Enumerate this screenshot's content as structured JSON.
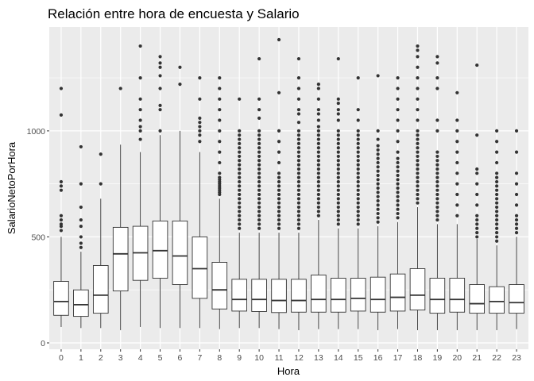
{
  "chart_data": {
    "type": "boxplot",
    "title": "Relación entre hora de encuesta y Salario",
    "xlabel": "Hora",
    "ylabel": "SalarioNetoPorHora",
    "categories": [
      "0",
      "1",
      "2",
      "3",
      "4",
      "5",
      "6",
      "7",
      "8",
      "9",
      "10",
      "11",
      "12",
      "13",
      "14",
      "15",
      "16",
      "17",
      "18",
      "19",
      "20",
      "21",
      "22",
      "23"
    ],
    "y_ticks": [
      0,
      500,
      1000
    ],
    "y_tick_labels": [
      "0",
      "500",
      "1000"
    ],
    "ylim": [
      -30,
      1490
    ],
    "grid": true,
    "background": "#ebebeb",
    "grid_color": "#ffffff",
    "box_fill": "#ffffff",
    "line_color": "#333333",
    "point_color": "#333333",
    "boxes": [
      {
        "hora": "0",
        "min": 75,
        "q1": 130,
        "median": 195,
        "q3": 290,
        "max": 500,
        "outliers": [
          530,
          550,
          560,
          580,
          600,
          720,
          740,
          760,
          1075,
          1200
        ]
      },
      {
        "hora": "1",
        "min": 70,
        "q1": 125,
        "median": 180,
        "q3": 250,
        "max": 430,
        "outliers": [
          450,
          470,
          500,
          550,
          580,
          640,
          750,
          925
        ]
      },
      {
        "hora": "2",
        "min": 70,
        "q1": 140,
        "median": 225,
        "q3": 365,
        "max": 680,
        "outliers": [
          750,
          890
        ]
      },
      {
        "hora": "3",
        "min": 60,
        "q1": 245,
        "median": 420,
        "q3": 545,
        "max": 935,
        "outliers": [
          1200
        ]
      },
      {
        "hora": "4",
        "min": 75,
        "q1": 295,
        "median": 425,
        "q3": 550,
        "max": 900,
        "outliers": [
          960,
          1000,
          1020,
          1050,
          1100,
          1150,
          1250,
          1400
        ]
      },
      {
        "hora": "5",
        "min": 70,
        "q1": 305,
        "median": 435,
        "q3": 575,
        "max": 980,
        "outliers": [
          1000,
          1100,
          1120,
          1200,
          1260,
          1300,
          1320,
          1350
        ]
      },
      {
        "hora": "6",
        "min": 70,
        "q1": 275,
        "median": 410,
        "q3": 575,
        "max": 1000,
        "outliers": [
          1220,
          1300
        ]
      },
      {
        "hora": "7",
        "min": 70,
        "q1": 210,
        "median": 350,
        "q3": 500,
        "max": 900,
        "outliers": [
          950,
          980,
          1000,
          1020,
          1040,
          1060,
          1150,
          1250
        ]
      },
      {
        "hora": "8",
        "min": 65,
        "q1": 160,
        "median": 250,
        "q3": 380,
        "max": 680,
        "outliers": [
          700,
          710,
          720,
          730,
          740,
          750,
          760,
          770,
          780,
          800,
          850,
          900,
          950,
          1000,
          1050,
          1100,
          1150,
          1200,
          1250
        ]
      },
      {
        "hora": "9",
        "min": 70,
        "q1": 150,
        "median": 205,
        "q3": 300,
        "max": 520,
        "outliers": [
          540,
          560,
          580,
          600,
          620,
          640,
          660,
          680,
          700,
          720,
          740,
          760,
          780,
          800,
          820,
          840,
          860,
          880,
          900,
          920,
          940,
          960,
          980,
          1000,
          1150
        ]
      },
      {
        "hora": "10",
        "min": 70,
        "q1": 148,
        "median": 205,
        "q3": 300,
        "max": 520,
        "outliers": [
          540,
          560,
          580,
          600,
          620,
          640,
          660,
          680,
          700,
          720,
          740,
          760,
          780,
          800,
          820,
          840,
          860,
          880,
          900,
          920,
          940,
          960,
          980,
          1000,
          1060,
          1100,
          1150,
          1340
        ]
      },
      {
        "hora": "11",
        "min": 65,
        "q1": 143,
        "median": 200,
        "q3": 300,
        "max": 520,
        "outliers": [
          540,
          560,
          580,
          600,
          620,
          640,
          660,
          680,
          700,
          720,
          740,
          760,
          780,
          800,
          850,
          900,
          950,
          1000,
          1180,
          1430
        ]
      },
      {
        "hora": "12",
        "min": 60,
        "q1": 145,
        "median": 200,
        "q3": 300,
        "max": 520,
        "outliers": [
          540,
          560,
          580,
          600,
          620,
          640,
          660,
          680,
          700,
          720,
          740,
          760,
          780,
          800,
          820,
          840,
          860,
          880,
          900,
          920,
          940,
          960,
          980,
          1000,
          1040,
          1080,
          1100,
          1150,
          1200,
          1250,
          1340
        ]
      },
      {
        "hora": "13",
        "min": 65,
        "q1": 145,
        "median": 205,
        "q3": 320,
        "max": 580,
        "outliers": [
          600,
          620,
          640,
          660,
          680,
          700,
          720,
          740,
          760,
          780,
          800,
          820,
          840,
          860,
          880,
          900,
          920,
          940,
          960,
          980,
          1000,
          1020,
          1050,
          1080,
          1100,
          1150,
          1200,
          1220
        ]
      },
      {
        "hora": "14",
        "min": 65,
        "q1": 145,
        "median": 205,
        "q3": 305,
        "max": 540,
        "outliers": [
          560,
          580,
          600,
          620,
          640,
          660,
          680,
          700,
          720,
          740,
          760,
          780,
          800,
          820,
          840,
          860,
          880,
          900,
          920,
          940,
          960,
          980,
          1000,
          1050,
          1080,
          1100,
          1130,
          1150,
          1340
        ]
      },
      {
        "hora": "15",
        "min": 65,
        "q1": 150,
        "median": 210,
        "q3": 305,
        "max": 540,
        "outliers": [
          560,
          580,
          600,
          620,
          640,
          660,
          680,
          700,
          720,
          740,
          760,
          780,
          800,
          820,
          840,
          860,
          880,
          900,
          920,
          940,
          960,
          980,
          1000,
          1050,
          1100,
          1250
        ]
      },
      {
        "hora": "16",
        "min": 60,
        "q1": 145,
        "median": 205,
        "q3": 310,
        "max": 550,
        "outliers": [
          570,
          590,
          610,
          630,
          650,
          670,
          690,
          710,
          730,
          750,
          770,
          790,
          810,
          830,
          850,
          870,
          890,
          910,
          930,
          960,
          1000,
          1260
        ]
      },
      {
        "hora": "17",
        "min": 65,
        "q1": 150,
        "median": 215,
        "q3": 325,
        "max": 570,
        "outliers": [
          590,
          610,
          630,
          650,
          670,
          690,
          710,
          730,
          750,
          770,
          790,
          810,
          830,
          850,
          870,
          900,
          950,
          1000,
          1050,
          1100,
          1150,
          1200,
          1250
        ]
      },
      {
        "hora": "18",
        "min": 60,
        "q1": 155,
        "median": 225,
        "q3": 350,
        "max": 640,
        "outliers": [
          660,
          680,
          700,
          720,
          740,
          760,
          780,
          800,
          820,
          840,
          860,
          880,
          900,
          920,
          940,
          960,
          980,
          1000,
          1050,
          1100,
          1150,
          1200,
          1250,
          1300,
          1350,
          1380,
          1400
        ]
      },
      {
        "hora": "19",
        "min": 60,
        "q1": 140,
        "median": 205,
        "q3": 305,
        "max": 560,
        "outliers": [
          580,
          600,
          620,
          640,
          660,
          680,
          700,
          720,
          740,
          760,
          780,
          800,
          820,
          840,
          860,
          880,
          900,
          1000,
          1050,
          1200,
          1250,
          1320,
          1350
        ]
      },
      {
        "hora": "20",
        "min": 60,
        "q1": 145,
        "median": 205,
        "q3": 305,
        "max": 560,
        "outliers": [
          600,
          650,
          700,
          750,
          800,
          850,
          900,
          950,
          1000,
          1050,
          1180
        ]
      },
      {
        "hora": "21",
        "min": 60,
        "q1": 140,
        "median": 185,
        "q3": 275,
        "max": 490,
        "outliers": [
          500,
          520,
          540,
          560,
          580,
          600,
          650,
          700,
          750,
          800,
          820,
          980,
          1310
        ]
      },
      {
        "hora": "22",
        "min": 60,
        "q1": 140,
        "median": 195,
        "q3": 265,
        "max": 460,
        "outliers": [
          480,
          500,
          520,
          540,
          560,
          580,
          600,
          620,
          640,
          660,
          680,
          700,
          720,
          740,
          760,
          780,
          800,
          850,
          900,
          950,
          1000
        ]
      },
      {
        "hora": "23",
        "min": 65,
        "q1": 140,
        "median": 190,
        "q3": 275,
        "max": 500,
        "outliers": [
          520,
          540,
          560,
          580,
          600,
          650,
          700,
          750,
          800,
          900,
          1000
        ]
      }
    ]
  }
}
